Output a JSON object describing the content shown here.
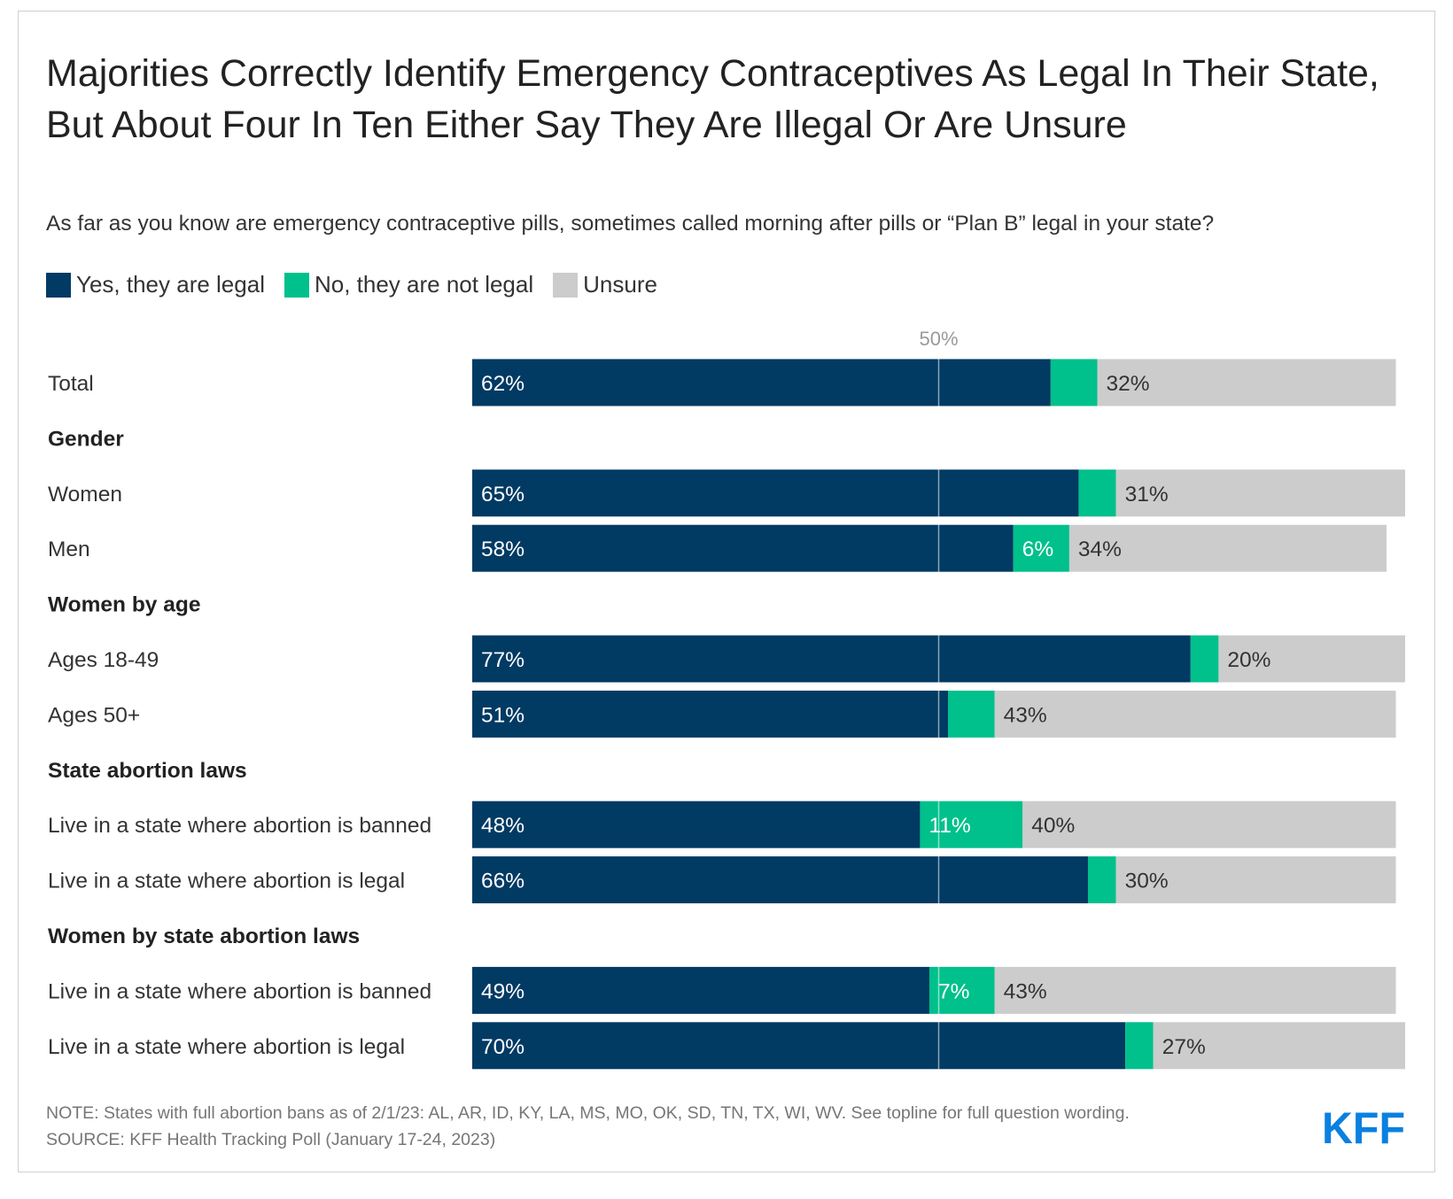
{
  "title": "Majorities Correctly Identify Emergency Contraceptives As Legal In Their State, But About Four In Ten Either Say They Are Illegal Or Are Unsure",
  "subtitle": "As far as you know are emergency contraceptive pills, sometimes called morning after pills or “Plan B” legal in your state?",
  "colors": {
    "yes": "#013a63",
    "no": "#00c08b",
    "unsure": "#cccccc",
    "logo": "#0a80e0"
  },
  "legend": [
    {
      "key": "yes",
      "label": "Yes, they are legal"
    },
    {
      "key": "no",
      "label": "No, they are not legal"
    },
    {
      "key": "unsure",
      "label": "Unsure"
    }
  ],
  "chart_data": {
    "type": "bar",
    "orientation": "horizontal",
    "stacked": true,
    "xlim": [
      0,
      100
    ],
    "reference_line": {
      "value": 50,
      "label": "50%"
    },
    "series": [
      {
        "name": "Yes, they are legal",
        "key": "yes"
      },
      {
        "name": "No, they are not legal",
        "key": "no"
      },
      {
        "name": "Unsure",
        "key": "unsure"
      }
    ],
    "rows": [
      {
        "kind": "bar",
        "label": "Total",
        "values": [
          62,
          5,
          32
        ],
        "labels": [
          "62%",
          "",
          "32%"
        ]
      },
      {
        "kind": "header",
        "label": "Gender"
      },
      {
        "kind": "bar",
        "label": "Women",
        "values": [
          65,
          4,
          31
        ],
        "labels": [
          "65%",
          "",
          "31%"
        ]
      },
      {
        "kind": "bar",
        "label": "Men",
        "values": [
          58,
          6,
          34
        ],
        "labels": [
          "58%",
          "6%",
          "34%"
        ]
      },
      {
        "kind": "header",
        "label": "Women by age"
      },
      {
        "kind": "bar",
        "label": "Ages 18-49",
        "values": [
          77,
          3,
          20
        ],
        "labels": [
          "77%",
          "",
          "20%"
        ]
      },
      {
        "kind": "bar",
        "label": "Ages 50+",
        "values": [
          51,
          5,
          43
        ],
        "labels": [
          "51%",
          "",
          "43%"
        ]
      },
      {
        "kind": "header",
        "label": "State abortion laws"
      },
      {
        "kind": "bar",
        "label": "Live in a state where abortion is banned",
        "values": [
          48,
          11,
          40
        ],
        "labels": [
          "48%",
          "11%",
          "40%"
        ]
      },
      {
        "kind": "bar",
        "label": "Live in a state where abortion is legal",
        "values": [
          66,
          3,
          30
        ],
        "labels": [
          "66%",
          "",
          "30%"
        ]
      },
      {
        "kind": "header",
        "label": "Women by state abortion laws"
      },
      {
        "kind": "bar",
        "label": "Live in a state where abortion is banned",
        "values": [
          49,
          7,
          43
        ],
        "labels": [
          "49%",
          "7%",
          "43%"
        ]
      },
      {
        "kind": "bar",
        "label": "Live in a state where abortion is legal",
        "values": [
          70,
          3,
          27
        ],
        "labels": [
          "70%",
          "",
          "27%"
        ]
      }
    ]
  },
  "footer": {
    "note": "NOTE: States with full abortion bans as of 2/1/23: AL, AR, ID, KY, LA, MS, MO, OK, SD, TN, TX, WI, WV. See topline for full question wording.",
    "source": "SOURCE: KFF Health Tracking Poll (January 17-24, 2023)"
  },
  "logo": {
    "text": "KFF"
  }
}
